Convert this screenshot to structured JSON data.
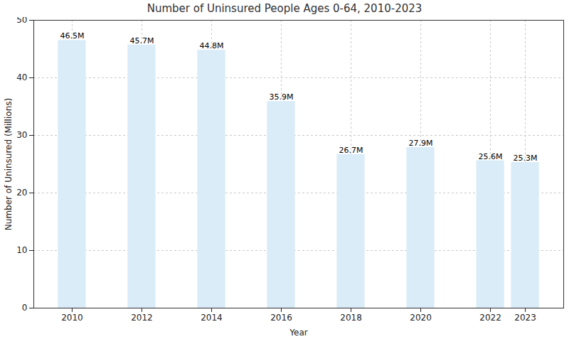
{
  "chart_data": {
    "type": "bar",
    "title": "Number of Uninsured People Ages 0-64, 2010-2023",
    "x_label": "Year",
    "y_label": "Number of Uninsured (Millions)",
    "x": [
      2010,
      2012,
      2014,
      2016,
      2018,
      2020,
      2022,
      2023
    ],
    "values": [
      46.5,
      45.7,
      44.8,
      35.9,
      26.7,
      27.9,
      25.6,
      25.3
    ],
    "value_labels": [
      "46.5M",
      "45.7M",
      "44.8M",
      "35.9M",
      "26.7M",
      "27.9M",
      "25.6M",
      "25.3M"
    ],
    "color": "#d9ecf8",
    "xlim": [
      2008.9,
      2024.1
    ],
    "xticks": [
      2010,
      2012,
      2014,
      2016,
      2018,
      2020,
      2022,
      2023
    ],
    "ylim": [
      0,
      50
    ],
    "yticks": [
      0,
      10,
      20,
      30,
      40,
      50
    ],
    "grid": true,
    "data_labels": true
  }
}
